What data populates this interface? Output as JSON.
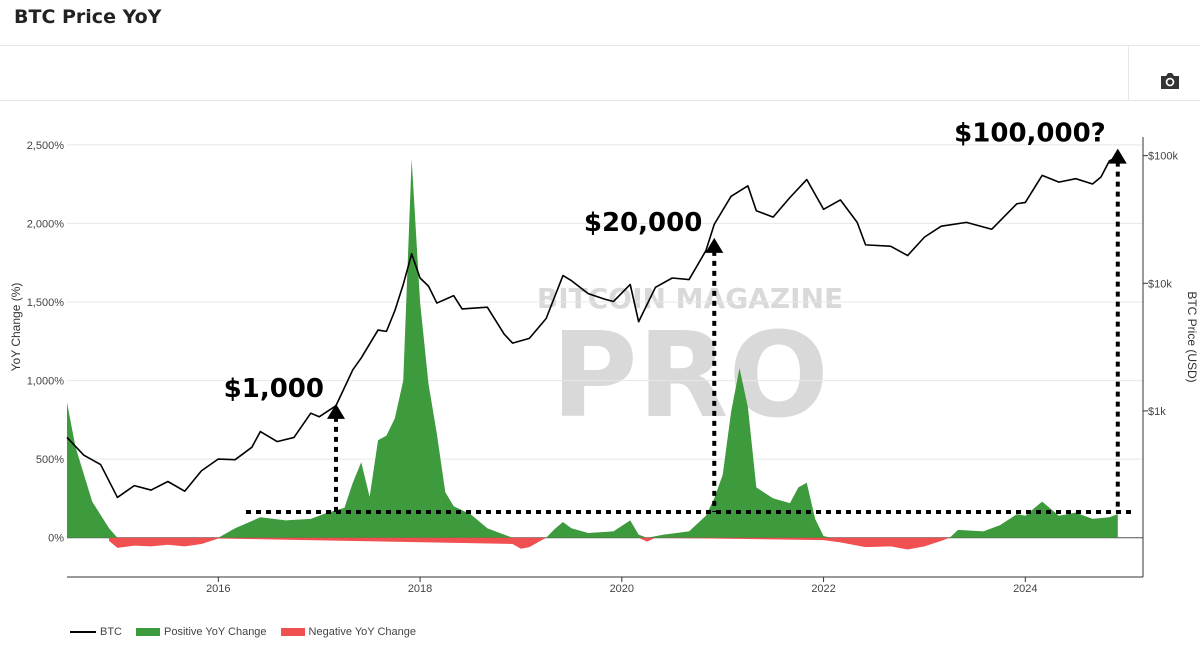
{
  "header": {
    "title": "BTC Price YoY"
  },
  "toolbar": {
    "camera_icon": "camera-icon"
  },
  "colors": {
    "btc": "#000000",
    "positive": "#3d9a3d",
    "negative": "#f05050",
    "watermark": "#d9d9d9"
  },
  "watermark": {
    "top": "BITCOIN MAGAZINE",
    "main": "PRO"
  },
  "chart_data": {
    "type": "area",
    "title": "BTC Price YoY",
    "ylabel_left": "YoY Change (%)",
    "ylabel_right": "BTC Price (USD)",
    "x_ticks": [
      "2016",
      "2018",
      "2020",
      "2022",
      "2024"
    ],
    "y_left_ticks": [
      "2,500%",
      "2,000%",
      "1,500%",
      "1,000%",
      "500%",
      "0%"
    ],
    "y_left_values": [
      2500,
      2000,
      1500,
      1000,
      500,
      0
    ],
    "y_right_ticks": [
      "$100k",
      "$10k",
      "$1k"
    ],
    "y_right_values": [
      100000,
      10000,
      1000
    ],
    "y_right_scale": "log",
    "x_range": [
      "2014-07",
      "2025-03"
    ],
    "y_left_range": [
      -250,
      2550
    ],
    "y_right_range": [
      50,
      140000
    ],
    "legend_position": "bottom-left",
    "series": [
      {
        "name": "BTC",
        "axis": "right",
        "points": [
          [
            "2014-07",
            620
          ],
          [
            "2014-09",
            450
          ],
          [
            "2014-11",
            380
          ],
          [
            "2015-01",
            210
          ],
          [
            "2015-03",
            260
          ],
          [
            "2015-05",
            240
          ],
          [
            "2015-07",
            280
          ],
          [
            "2015-09",
            235
          ],
          [
            "2015-11",
            340
          ],
          [
            "2016-01",
            420
          ],
          [
            "2016-03",
            415
          ],
          [
            "2016-05",
            520
          ],
          [
            "2016-06",
            690
          ],
          [
            "2016-08",
            575
          ],
          [
            "2016-10",
            620
          ],
          [
            "2016-12",
            960
          ],
          [
            "2017-01",
            900
          ],
          [
            "2017-03",
            1100
          ],
          [
            "2017-05",
            2100
          ],
          [
            "2017-06",
            2600
          ],
          [
            "2017-08",
            4300
          ],
          [
            "2017-09",
            4200
          ],
          [
            "2017-10",
            6100
          ],
          [
            "2017-11",
            9800
          ],
          [
            "2017-12",
            17000
          ],
          [
            "2018-01",
            11000
          ],
          [
            "2018-02",
            9500
          ],
          [
            "2018-03",
            7000
          ],
          [
            "2018-05",
            8000
          ],
          [
            "2018-06",
            6300
          ],
          [
            "2018-09",
            6500
          ],
          [
            "2018-11",
            4000
          ],
          [
            "2018-12",
            3400
          ],
          [
            "2019-02",
            3700
          ],
          [
            "2019-04",
            5300
          ],
          [
            "2019-06",
            11500
          ],
          [
            "2019-07",
            10500
          ],
          [
            "2019-09",
            8300
          ],
          [
            "2019-11",
            7500
          ],
          [
            "2019-12",
            7200
          ],
          [
            "2020-02",
            9800
          ],
          [
            "2020-03",
            5000
          ],
          [
            "2020-05",
            9300
          ],
          [
            "2020-07",
            11000
          ],
          [
            "2020-09",
            10700
          ],
          [
            "2020-11",
            18000
          ],
          [
            "2020-12",
            29000
          ],
          [
            "2021-02",
            48000
          ],
          [
            "2021-04",
            58000
          ],
          [
            "2021-05",
            37000
          ],
          [
            "2021-07",
            33000
          ],
          [
            "2021-09",
            47000
          ],
          [
            "2021-11",
            65000
          ],
          [
            "2022-01",
            38000
          ],
          [
            "2022-03",
            45000
          ],
          [
            "2022-05",
            30000
          ],
          [
            "2022-06",
            20000
          ],
          [
            "2022-09",
            19500
          ],
          [
            "2022-11",
            16500
          ],
          [
            "2023-01",
            23000
          ],
          [
            "2023-03",
            28000
          ],
          [
            "2023-06",
            30000
          ],
          [
            "2023-09",
            26500
          ],
          [
            "2023-12",
            42000
          ],
          [
            "2024-01",
            43000
          ],
          [
            "2024-03",
            70000
          ],
          [
            "2024-05",
            62000
          ],
          [
            "2024-07",
            66000
          ],
          [
            "2024-09",
            60000
          ],
          [
            "2024-10",
            68000
          ],
          [
            "2024-11",
            91000
          ],
          [
            "2024-12",
            98000
          ]
        ]
      },
      {
        "name": "Positive YoY Change",
        "axis": "left",
        "points": [
          [
            "2014-07",
            860
          ],
          [
            "2014-08",
            580
          ],
          [
            "2014-10",
            230
          ],
          [
            "2014-12",
            60
          ],
          [
            "2015-01",
            0
          ],
          [
            "2016-01",
            0
          ],
          [
            "2016-03",
            60
          ],
          [
            "2016-06",
            130
          ],
          [
            "2016-09",
            110
          ],
          [
            "2016-12",
            120
          ],
          [
            "2017-02",
            160
          ],
          [
            "2017-04",
            190
          ],
          [
            "2017-05",
            350
          ],
          [
            "2017-06",
            480
          ],
          [
            "2017-07",
            260
          ],
          [
            "2017-08",
            620
          ],
          [
            "2017-09",
            650
          ],
          [
            "2017-10",
            760
          ],
          [
            "2017-11",
            1000
          ],
          [
            "2017-12",
            2410
          ],
          [
            "2018-01",
            1500
          ],
          [
            "2018-02",
            980
          ],
          [
            "2018-03",
            660
          ],
          [
            "2018-04",
            290
          ],
          [
            "2018-05",
            200
          ],
          [
            "2018-07",
            150
          ],
          [
            "2018-09",
            60
          ],
          [
            "2018-11",
            20
          ],
          [
            "2018-12",
            0
          ],
          [
            "2019-04",
            0
          ],
          [
            "2019-05",
            55
          ],
          [
            "2019-06",
            100
          ],
          [
            "2019-07",
            60
          ],
          [
            "2019-09",
            30
          ],
          [
            "2019-12",
            40
          ],
          [
            "2020-02",
            110
          ],
          [
            "2020-03",
            20
          ],
          [
            "2020-04",
            0
          ],
          [
            "2020-06",
            20
          ],
          [
            "2020-09",
            40
          ],
          [
            "2020-11",
            140
          ],
          [
            "2020-12",
            250
          ],
          [
            "2021-01",
            400
          ],
          [
            "2021-02",
            800
          ],
          [
            "2021-03",
            1080
          ],
          [
            "2021-04",
            830
          ],
          [
            "2021-05",
            320
          ],
          [
            "2021-07",
            250
          ],
          [
            "2021-09",
            220
          ],
          [
            "2021-10",
            320
          ],
          [
            "2021-11",
            350
          ],
          [
            "2021-12",
            120
          ],
          [
            "2022-01",
            10
          ],
          [
            "2022-02",
            0
          ],
          [
            "2023-04",
            0
          ],
          [
            "2023-05",
            50
          ],
          [
            "2023-08",
            40
          ],
          [
            "2023-10",
            80
          ],
          [
            "2023-12",
            150
          ],
          [
            "2024-01",
            140
          ],
          [
            "2024-03",
            230
          ],
          [
            "2024-05",
            140
          ],
          [
            "2024-07",
            160
          ],
          [
            "2024-09",
            120
          ],
          [
            "2024-11",
            130
          ],
          [
            "2024-12",
            150
          ]
        ]
      },
      {
        "name": "Negative YoY Change",
        "axis": "left",
        "points": [
          [
            "2014-12",
            -20
          ],
          [
            "2015-01",
            -65
          ],
          [
            "2015-03",
            -50
          ],
          [
            "2015-05",
            -55
          ],
          [
            "2015-07",
            -45
          ],
          [
            "2015-09",
            -55
          ],
          [
            "2015-11",
            -40
          ],
          [
            "2016-01",
            -5
          ],
          [
            "2018-12",
            -40
          ],
          [
            "2019-01",
            -70
          ],
          [
            "2019-02",
            -60
          ],
          [
            "2019-03",
            -30
          ],
          [
            "2019-04",
            0
          ],
          [
            "2020-03",
            0
          ],
          [
            "2020-04",
            -25
          ],
          [
            "2020-05",
            0
          ],
          [
            "2022-01",
            -15
          ],
          [
            "2022-03",
            -30
          ],
          [
            "2022-06",
            -60
          ],
          [
            "2022-09",
            -55
          ],
          [
            "2022-11",
            -75
          ],
          [
            "2023-01",
            -55
          ],
          [
            "2023-03",
            -20
          ],
          [
            "2023-04",
            0
          ]
        ]
      }
    ],
    "annotations": [
      {
        "label": "$1,000",
        "date": "2017-03",
        "price": 1000
      },
      {
        "label": "$20,000",
        "date": "2020-12",
        "price": 20000
      },
      {
        "label": "$100,000?",
        "date": "2024-12",
        "price": 100000
      }
    ]
  },
  "legend": [
    {
      "label": "BTC",
      "color": "#000000"
    },
    {
      "label": "Positive YoY Change",
      "color": "#3d9a3d"
    },
    {
      "label": "Negative YoY Change",
      "color": "#f05050"
    }
  ]
}
